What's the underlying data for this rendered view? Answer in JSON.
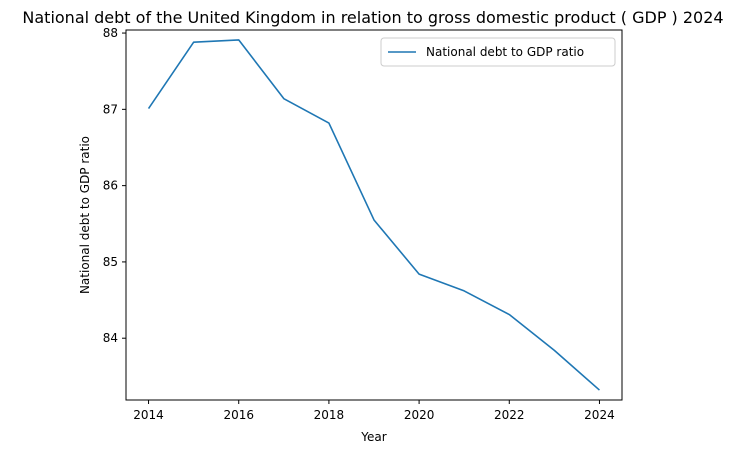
{
  "chart_data": {
    "type": "line",
    "title": "National debt of the United Kingdom in relation to gross domestic product ( GDP ) 2024",
    "xlabel": "Year",
    "ylabel": "National debt to GDP ratio",
    "x": [
      2014,
      2015,
      2016,
      2017,
      2018,
      2019,
      2020,
      2021,
      2022,
      2023,
      2024
    ],
    "series": [
      {
        "name": "National debt to GDP ratio",
        "values": [
          87.01,
          87.88,
          87.91,
          87.14,
          86.82,
          85.55,
          84.84,
          84.62,
          84.31,
          83.84,
          83.32
        ],
        "color": "#1f77b4"
      }
    ],
    "xticks": [
      2014,
      2016,
      2018,
      2020,
      2022,
      2024
    ],
    "yticks": [
      84,
      85,
      86,
      87,
      88
    ],
    "xlim": [
      2013.5,
      2024.5
    ],
    "ylim": [
      83.19,
      88.04
    ],
    "grid": false,
    "legend_position": "upper right"
  }
}
